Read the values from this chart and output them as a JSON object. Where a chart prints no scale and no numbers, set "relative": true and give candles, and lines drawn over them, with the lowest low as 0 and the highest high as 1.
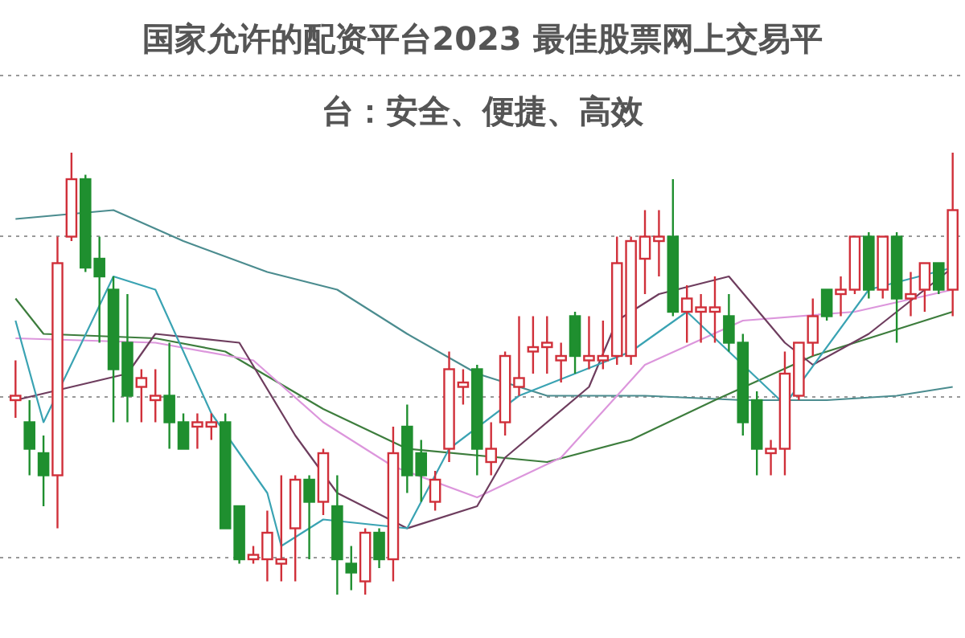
{
  "chart_data": {
    "type": "candlestick",
    "title": "国家允许的配资平台2023 最佳股票网上交易平台：安全、便捷、高效",
    "relative": true,
    "grid": true,
    "categories": [
      null,
      null,
      null,
      null,
      null,
      null,
      null,
      null,
      null,
      null,
      null,
      null,
      null,
      null,
      null,
      null,
      null,
      null,
      null,
      null,
      null,
      null,
      null,
      null,
      null,
      null,
      null,
      null,
      null,
      null,
      null,
      null,
      null,
      null,
      null,
      null,
      null,
      null,
      null,
      null,
      null,
      null,
      null,
      null,
      null,
      null,
      null,
      null,
      null,
      null,
      null,
      null,
      null,
      null,
      null,
      null,
      null,
      null,
      null,
      null,
      null,
      null,
      null,
      null,
      null,
      null,
      null,
      null
    ],
    "ohlc": [
      [
        0.44,
        0.53,
        0.4,
        0.45
      ],
      [
        0.39,
        0.44,
        0.27,
        0.33
      ],
      [
        0.32,
        0.36,
        0.2,
        0.27
      ],
      [
        0.27,
        0.81,
        0.15,
        0.75
      ],
      [
        0.81,
        1.0,
        0.8,
        0.94
      ],
      [
        0.94,
        0.95,
        0.73,
        0.74
      ],
      [
        0.76,
        0.81,
        0.57,
        0.72
      ],
      [
        0.69,
        0.72,
        0.39,
        0.51
      ],
      [
        0.57,
        0.68,
        0.39,
        0.45
      ],
      [
        0.47,
        0.51,
        0.39,
        0.49
      ],
      [
        0.44,
        0.51,
        0.39,
        0.45
      ],
      [
        0.45,
        0.57,
        0.33,
        0.39
      ],
      [
        0.39,
        0.41,
        0.33,
        0.33
      ],
      [
        0.38,
        0.41,
        0.33,
        0.39
      ],
      [
        0.38,
        0.41,
        0.35,
        0.39
      ],
      [
        0.39,
        0.41,
        0.15,
        0.15
      ],
      [
        0.2,
        0.2,
        0.07,
        0.08
      ],
      [
        0.08,
        0.11,
        0.07,
        0.09
      ],
      [
        0.08,
        0.19,
        0.03,
        0.14
      ],
      [
        0.07,
        0.27,
        0.03,
        0.08
      ],
      [
        0.15,
        0.27,
        0.03,
        0.26
      ],
      [
        0.26,
        0.27,
        0.08,
        0.21
      ],
      [
        0.21,
        0.33,
        0.18,
        0.32
      ],
      [
        0.2,
        0.27,
        0,
        0.08
      ],
      [
        0.07,
        0.11,
        0.01,
        0.05
      ],
      [
        0.03,
        0.15,
        0,
        0.14
      ],
      [
        0.14,
        0.15,
        0.06,
        0.08
      ],
      [
        0.08,
        0.38,
        0.03,
        0.32
      ],
      [
        0.38,
        0.43,
        0.23,
        0.27
      ],
      [
        0.32,
        0.35,
        0.21,
        0.27
      ],
      [
        0.21,
        0.28,
        0.19,
        0.26
      ],
      [
        0.33,
        0.55,
        0.3,
        0.51
      ],
      [
        0.47,
        0.51,
        0.43,
        0.48
      ],
      [
        0.51,
        0.52,
        0.27,
        0.33
      ],
      [
        0.3,
        0.39,
        0.27,
        0.33
      ],
      [
        0.39,
        0.55,
        0.36,
        0.54
      ],
      [
        0.47,
        0.63,
        0.45,
        0.49
      ],
      [
        0.55,
        0.63,
        0.5,
        0.56
      ],
      [
        0.56,
        0.63,
        0.5,
        0.57
      ],
      [
        0.53,
        0.57,
        0.48,
        0.54
      ],
      [
        0.63,
        0.64,
        0.5,
        0.54
      ],
      [
        0.53,
        0.63,
        0.51,
        0.54
      ],
      [
        0.53,
        0.62,
        0.51,
        0.54
      ],
      [
        0.54,
        0.81,
        0.52,
        0.75
      ],
      [
        0.54,
        0.81,
        0.52,
        0.8
      ],
      [
        0.76,
        0.87,
        0.68,
        0.81
      ],
      [
        0.8,
        0.87,
        0.72,
        0.81
      ],
      [
        0.81,
        0.94,
        0.63,
        0.64
      ],
      [
        0.64,
        0.7,
        0.57,
        0.67
      ],
      [
        0.64,
        0.68,
        0.57,
        0.65
      ],
      [
        0.64,
        0.72,
        0.57,
        0.65
      ],
      [
        0.63,
        0.68,
        0.55,
        0.57
      ],
      [
        0.57,
        0.59,
        0.36,
        0.39
      ],
      [
        0.44,
        0.46,
        0.27,
        0.33
      ],
      [
        0.32,
        0.35,
        0.27,
        0.33
      ],
      [
        0.33,
        0.55,
        0.27,
        0.5
      ],
      [
        0.45,
        0.57,
        0.44,
        0.57
      ],
      [
        0.57,
        0.67,
        0.54,
        0.63
      ],
      [
        0.69,
        0.69,
        0.62,
        0.63
      ],
      [
        0.68,
        0.72,
        0.63,
        0.69
      ],
      [
        0.69,
        0.81,
        0.68,
        0.81
      ],
      [
        0.81,
        0.82,
        0.67,
        0.69
      ],
      [
        0.69,
        0.81,
        0.67,
        0.81
      ],
      [
        0.81,
        0.82,
        0.57,
        0.67
      ],
      [
        0.67,
        0.73,
        0.63,
        0.68
      ],
      [
        0.69,
        0.75,
        0.64,
        0.75
      ],
      [
        0.75,
        0.75,
        0.68,
        0.69
      ],
      [
        0.69,
        1.0,
        0.63,
        0.87
      ]
    ],
    "colors": [
      "#d0303a",
      "#1f8f2f",
      "#1f8f2f",
      "#d0303a",
      "#d0303a",
      "#1f8f2f",
      "#1f8f2f",
      "#1f8f2f",
      "#1f8f2f",
      "#d0303a",
      "#d0303a",
      "#1f8f2f",
      "#1f8f2f",
      "#d0303a",
      "#d0303a",
      "#1f8f2f",
      "#1f8f2f",
      "#d0303a",
      "#d0303a",
      "#d0303a",
      "#d0303a",
      "#1f8f2f",
      "#d0303a",
      "#1f8f2f",
      "#1f8f2f",
      "#d0303a",
      "#1f8f2f",
      "#d0303a",
      "#1f8f2f",
      "#1f8f2f",
      "#d0303a",
      "#d0303a",
      "#d0303a",
      "#1f8f2f",
      "#d0303a",
      "#d0303a",
      "#d0303a",
      "#d0303a",
      "#d0303a",
      "#d0303a",
      "#1f8f2f",
      "#d0303a",
      "#d0303a",
      "#d0303a",
      "#d0303a",
      "#d0303a",
      "#d0303a",
      "#1f8f2f",
      "#d0303a",
      "#d0303a",
      "#d0303a",
      "#1f8f2f",
      "#1f8f2f",
      "#1f8f2f",
      "#d0303a",
      "#d0303a",
      "#d0303a",
      "#d0303a",
      "#1f8f2f",
      "#d0303a",
      "#d0303a",
      "#1f8f2f",
      "#d0303a",
      "#1f8f2f",
      "#d0303a",
      "#d0303a",
      "#1f8f2f",
      "#d0303a"
    ],
    "series": [
      {
        "type": "line",
        "color": "#4b8c8f",
        "values": [
          0.85,
          null,
          null,
          null,
          null,
          null,
          null,
          0.87,
          null,
          null,
          null,
          null,
          0.8,
          null,
          null,
          null,
          null,
          null,
          0.73,
          null,
          null,
          null,
          null,
          0.69,
          null,
          null,
          null,
          null,
          0.59,
          null,
          null,
          null,
          null,
          0.5,
          null,
          null,
          null,
          null,
          0.45,
          null,
          null,
          null,
          null,
          null,
          null,
          0.45,
          null,
          null,
          null,
          null,
          null,
          null,
          0.44,
          null,
          null,
          null,
          null,
          null,
          0.44,
          null,
          null,
          null,
          null,
          0.45,
          null,
          null,
          null,
          0.47
        ]
      },
      {
        "type": "line",
        "color": "#3d7d3d",
        "values": [
          0.67,
          null,
          0.59,
          null,
          null,
          null,
          null,
          null,
          null,
          null,
          0.58,
          null,
          null,
          null,
          null,
          0.55,
          null,
          null,
          null,
          null,
          null,
          null,
          0.42,
          null,
          null,
          null,
          null,
          null,
          0.33,
          null,
          null,
          null,
          null,
          null,
          null,
          null,
          null,
          null,
          0.3,
          null,
          null,
          null,
          null,
          null,
          0.35,
          null,
          null,
          null,
          null,
          null,
          0.44,
          null,
          null,
          null,
          null,
          null,
          null,
          0.54,
          null,
          null,
          null,
          null,
          null,
          0.6,
          null,
          null,
          null,
          0.64
        ]
      },
      {
        "type": "line",
        "color": "#dc96dc",
        "values": [
          0.58,
          null,
          null,
          null,
          null,
          null,
          null,
          null,
          null,
          null,
          0.57,
          null,
          null,
          null,
          null,
          null,
          null,
          0.53,
          null,
          null,
          null,
          null,
          0.39,
          null,
          null,
          null,
          null,
          0.29,
          null,
          null,
          null,
          null,
          null,
          0.22,
          null,
          null,
          null,
          null,
          null,
          0.31,
          null,
          null,
          null,
          null,
          null,
          0.52,
          null,
          null,
          null,
          null,
          null,
          null,
          0.62,
          null,
          null,
          null,
          null,
          null,
          null,
          null,
          0.64,
          null,
          null,
          null,
          null,
          null,
          null,
          0.69
        ]
      },
      {
        "type": "line",
        "color": "#6e3d5e",
        "values": [
          0.44,
          null,
          null,
          null,
          null,
          null,
          null,
          null,
          0.5,
          null,
          0.59,
          null,
          null,
          null,
          null,
          null,
          0.57,
          null,
          null,
          null,
          0.36,
          null,
          null,
          0.23,
          null,
          null,
          null,
          null,
          0.15,
          null,
          null,
          null,
          null,
          0.2,
          null,
          0.31,
          null,
          null,
          null,
          null,
          null,
          0.47,
          null,
          0.62,
          null,
          null,
          0.68,
          null,
          null,
          null,
          null,
          0.72,
          null,
          null,
          null,
          0.57,
          null,
          0.52,
          null,
          null,
          null,
          0.59,
          null,
          null,
          null,
          null,
          null,
          0.74
        ]
      },
      {
        "type": "line",
        "color": "#3aa3b3",
        "values": [
          0.62,
          null,
          0.39,
          null,
          null,
          null,
          null,
          0.72,
          null,
          null,
          0.69,
          null,
          null,
          null,
          0.41,
          null,
          null,
          null,
          0.23,
          0.11,
          null,
          null,
          0.17,
          null,
          null,
          null,
          null,
          null,
          0.15,
          null,
          null,
          0.33,
          null,
          null,
          null,
          null,
          0.45,
          null,
          null,
          null,
          null,
          null,
          null,
          null,
          0.55,
          null,
          null,
          null,
          0.64,
          null,
          null,
          null,
          null,
          null,
          null,
          0.43,
          null,
          null,
          null,
          null,
          null,
          0.69,
          null,
          null,
          null,
          null,
          null,
          0.74
        ]
      }
    ]
  }
}
